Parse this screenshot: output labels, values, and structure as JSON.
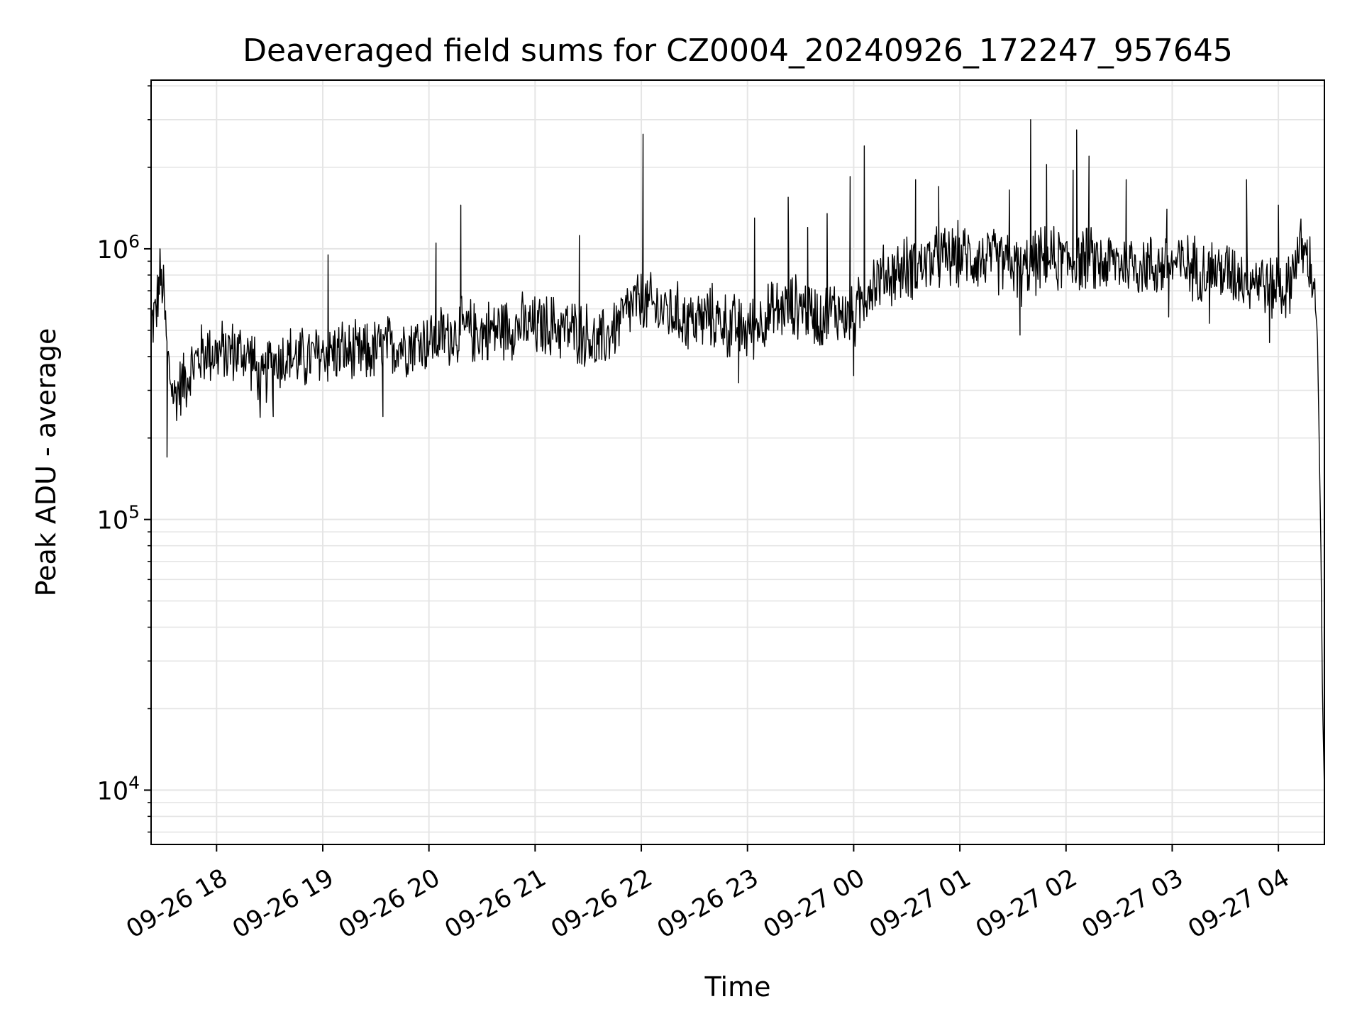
{
  "chart_data": {
    "type": "line",
    "title": "Deaveraged field sums for CZ0004_20240926_172247_957645",
    "xlabel": "Time",
    "ylabel": "Peak ADU - average",
    "yscale": "log",
    "ylim": [
      6300,
      4200000
    ],
    "xlim": [
      "2024-09-26 17:23",
      "2024-09-27 04:26"
    ],
    "grid": true,
    "line_color": "#000000",
    "grid_color": "#e5e5e5",
    "x_ticks": [
      {
        "value": "2024-09-26 18:00",
        "label": "09-26 18"
      },
      {
        "value": "2024-09-26 19:00",
        "label": "09-26 19"
      },
      {
        "value": "2024-09-26 20:00",
        "label": "09-26 20"
      },
      {
        "value": "2024-09-26 21:00",
        "label": "09-26 21"
      },
      {
        "value": "2024-09-26 22:00",
        "label": "09-26 22"
      },
      {
        "value": "2024-09-26 23:00",
        "label": "09-26 23"
      },
      {
        "value": "2024-09-27 00:00",
        "label": "09-27 00"
      },
      {
        "value": "2024-09-27 01:00",
        "label": "09-27 01"
      },
      {
        "value": "2024-09-27 02:00",
        "label": "09-27 02"
      },
      {
        "value": "2024-09-27 03:00",
        "label": "09-27 03"
      },
      {
        "value": "2024-09-27 04:00",
        "label": "09-27 04"
      }
    ],
    "y_ticks": [
      {
        "value": 10000,
        "base": "10",
        "exp": "4"
      },
      {
        "value": 100000,
        "base": "10",
        "exp": "5"
      },
      {
        "value": 1000000,
        "base": "10",
        "exp": "6"
      }
    ],
    "series": [
      {
        "points": [
          [
            "2024-09-26 17:23",
            520000
          ],
          [
            "2024-09-26 17:26",
            600000
          ],
          [
            "2024-09-26 17:28",
            780000
          ],
          [
            "2024-09-26 17:30",
            700000
          ],
          [
            "2024-09-26 17:32",
            420000
          ],
          [
            "2024-09-26 17:34",
            330000
          ],
          [
            "2024-09-26 17:36",
            280000
          ],
          [
            "2024-09-26 17:38",
            300000
          ],
          [
            "2024-09-26 17:42",
            330000
          ],
          [
            "2024-09-26 17:46",
            360000
          ],
          [
            "2024-09-26 17:50",
            400000
          ],
          [
            "2024-09-26 17:55",
            420000
          ],
          [
            "2024-09-26 18:00",
            410000
          ],
          [
            "2024-09-26 18:10",
            420000
          ],
          [
            "2024-09-26 18:20",
            400000
          ],
          [
            "2024-09-26 18:25",
            300000
          ],
          [
            "2024-09-26 18:30",
            380000
          ],
          [
            "2024-09-26 18:40",
            400000
          ],
          [
            "2024-09-26 18:50",
            390000
          ],
          [
            "2024-09-26 19:00",
            410000
          ],
          [
            "2024-09-26 19:10",
            420000
          ],
          [
            "2024-09-26 19:20",
            400000
          ],
          [
            "2024-09-26 19:30",
            420000
          ],
          [
            "2024-09-26 19:40",
            440000
          ],
          [
            "2024-09-26 19:50",
            450000
          ],
          [
            "2024-09-26 20:00",
            460000
          ],
          [
            "2024-09-26 20:10",
            480000
          ],
          [
            "2024-09-26 20:20",
            500000
          ],
          [
            "2024-09-26 20:30",
            490000
          ],
          [
            "2024-09-26 20:40",
            510000
          ],
          [
            "2024-09-26 20:50",
            520000
          ],
          [
            "2024-09-26 21:00",
            510000
          ],
          [
            "2024-09-26 21:10",
            520000
          ],
          [
            "2024-09-26 21:20",
            500000
          ],
          [
            "2024-09-26 21:30",
            480000
          ],
          [
            "2024-09-26 21:35",
            430000
          ],
          [
            "2024-09-26 21:40",
            470000
          ],
          [
            "2024-09-26 21:50",
            560000
          ],
          [
            "2024-09-26 21:55",
            620000
          ],
          [
            "2024-09-26 22:00",
            630000
          ],
          [
            "2024-09-26 22:10",
            600000
          ],
          [
            "2024-09-26 22:20",
            570000
          ],
          [
            "2024-09-26 22:30",
            540000
          ],
          [
            "2024-09-26 22:40",
            560000
          ],
          [
            "2024-09-26 22:50",
            520000
          ],
          [
            "2024-09-26 23:00",
            500000
          ],
          [
            "2024-09-26 23:10",
            560000
          ],
          [
            "2024-09-26 23:20",
            600000
          ],
          [
            "2024-09-26 23:30",
            620000
          ],
          [
            "2024-09-26 23:40",
            560000
          ],
          [
            "2024-09-26 23:50",
            600000
          ],
          [
            "2024-09-27 00:00",
            540000
          ],
          [
            "2024-09-27 00:05",
            650000
          ],
          [
            "2024-09-27 00:10",
            750000
          ],
          [
            "2024-09-27 00:20",
            800000
          ],
          [
            "2024-09-27 00:30",
            850000
          ],
          [
            "2024-09-27 00:40",
            880000
          ],
          [
            "2024-09-27 00:50",
            920000
          ],
          [
            "2024-09-27 01:00",
            950000
          ],
          [
            "2024-09-27 01:10",
            920000
          ],
          [
            "2024-09-27 01:20",
            900000
          ],
          [
            "2024-09-27 01:30",
            880000
          ],
          [
            "2024-09-27 01:35",
            800000
          ],
          [
            "2024-09-27 01:40",
            880000
          ],
          [
            "2024-09-27 01:50",
            920000
          ],
          [
            "2024-09-27 02:00",
            900000
          ],
          [
            "2024-09-27 02:10",
            920000
          ],
          [
            "2024-09-27 02:20",
            880000
          ],
          [
            "2024-09-27 02:30",
            900000
          ],
          [
            "2024-09-27 02:40",
            880000
          ],
          [
            "2024-09-27 02:50",
            860000
          ],
          [
            "2024-09-27 03:00",
            880000
          ],
          [
            "2024-09-27 03:10",
            860000
          ],
          [
            "2024-09-27 03:20",
            840000
          ],
          [
            "2024-09-27 03:30",
            820000
          ],
          [
            "2024-09-27 03:40",
            800000
          ],
          [
            "2024-09-27 03:50",
            780000
          ],
          [
            "2024-09-27 03:55",
            700000
          ],
          [
            "2024-09-27 04:00",
            760000
          ],
          [
            "2024-09-27 04:05",
            680000
          ],
          [
            "2024-09-27 04:10",
            950000
          ],
          [
            "2024-09-27 04:13",
            1000000
          ],
          [
            "2024-09-27 04:17",
            900000
          ],
          [
            "2024-09-27 04:20",
            750000
          ],
          [
            "2024-09-27 04:22",
            500000
          ],
          [
            "2024-09-27 04:23",
            200000
          ],
          [
            "2024-09-27 04:24",
            80000
          ],
          [
            "2024-09-27 04:25",
            20000
          ],
          [
            "2024-09-27 04:26",
            10000
          ]
        ],
        "spikes": [
          [
            "2024-09-26 17:32",
            170000
          ],
          [
            "2024-09-26 17:28",
            1000000
          ],
          [
            "2024-09-26 18:32",
            240000
          ],
          [
            "2024-09-26 19:03",
            950000
          ],
          [
            "2024-09-26 19:34",
            240000
          ],
          [
            "2024-09-26 20:04",
            1050000
          ],
          [
            "2024-09-26 20:09",
            480000
          ],
          [
            "2024-09-26 20:18",
            1450000
          ],
          [
            "2024-09-26 21:25",
            1120000
          ],
          [
            "2024-09-26 22:01",
            2650000
          ],
          [
            "2024-09-26 22:50",
            400000
          ],
          [
            "2024-09-26 22:55",
            320000
          ],
          [
            "2024-09-26 23:04",
            1300000
          ],
          [
            "2024-09-26 23:23",
            1550000
          ],
          [
            "2024-09-26 23:34",
            1200000
          ],
          [
            "2024-09-26 23:45",
            1350000
          ],
          [
            "2024-09-26 23:58",
            1850000
          ],
          [
            "2024-09-27 00:00",
            340000
          ],
          [
            "2024-09-27 00:06",
            2400000
          ],
          [
            "2024-09-27 00:35",
            1800000
          ],
          [
            "2024-09-27 00:48",
            1700000
          ],
          [
            "2024-09-27 01:28",
            1650000
          ],
          [
            "2024-09-27 01:34",
            480000
          ],
          [
            "2024-09-27 01:40",
            3000000
          ],
          [
            "2024-09-27 01:49",
            2050000
          ],
          [
            "2024-09-27 02:04",
            1950000
          ],
          [
            "2024-09-27 02:06",
            2750000
          ],
          [
            "2024-09-27 02:13",
            2200000
          ],
          [
            "2024-09-27 02:34",
            1800000
          ],
          [
            "2024-09-27 02:57",
            1400000
          ],
          [
            "2024-09-27 02:58",
            560000
          ],
          [
            "2024-09-27 03:21",
            530000
          ],
          [
            "2024-09-27 03:42",
            1800000
          ],
          [
            "2024-09-27 03:55",
            450000
          ],
          [
            "2024-09-27 04:00",
            1450000
          ]
        ]
      }
    ]
  }
}
